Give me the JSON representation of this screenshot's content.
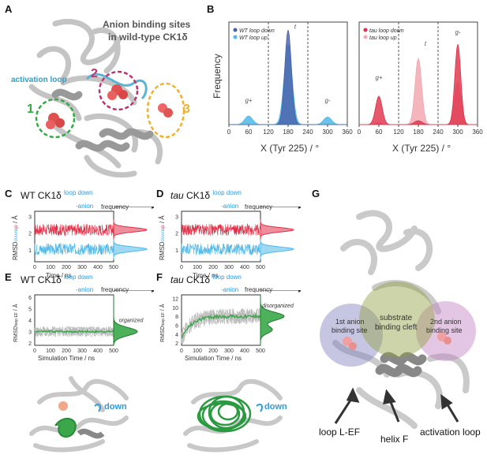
{
  "panelA": {
    "label": "A",
    "title_line1": "Anion binding sites",
    "title_line2": "in wild-type CK1δ",
    "activation_loop": "activation loop",
    "site1": "1",
    "site2": "2",
    "site3": "3"
  },
  "panelB": {
    "label": "B",
    "ylabel": "Frequency",
    "xlabel": "X (Tyr 225) / °",
    "xticks": [
      "0",
      "60",
      "120",
      "180",
      "240",
      "300",
      "360"
    ],
    "left_legend": [
      "WT loop down",
      "WT loop up"
    ],
    "right_legend": [
      "tau loop down",
      "tau loop up"
    ],
    "peak_labels": [
      "g+",
      "t",
      "g-"
    ]
  },
  "panelC": {
    "label": "C",
    "title_pre": "WT CK1δ",
    "title_sup1": "loop down",
    "title_sup2": "-anion",
    "ylabel_a": "RMSD",
    "ylabel_up": "up",
    "ylabel_down": "down",
    "ylabel_unit": "/ Å",
    "xlabel": "Time / ns",
    "frequency": "frequency",
    "xticks": [
      "0",
      "100",
      "200",
      "300",
      "400",
      "500"
    ],
    "yticks": [
      "1",
      "2",
      "3"
    ]
  },
  "panelD": {
    "label": "D",
    "title_pre": "tau",
    "title_mid": " CK1δ",
    "title_sup1": "loop down",
    "title_sup2": "-anion",
    "ylabel_a": "RMSD",
    "ylabel_up": "up",
    "ylabel_down": "down",
    "ylabel_unit": "/ Å",
    "xlabel": "Time / ns",
    "frequency": "frequency",
    "xticks": [
      "0",
      "100",
      "200",
      "300",
      "400",
      "500"
    ],
    "yticks": [
      "1",
      "2",
      "3"
    ]
  },
  "panelE": {
    "label": "E",
    "title_pre": "WT CK1δ",
    "title_sup1": "loop down",
    "title_sup2": "-anion",
    "ylabel": "RMSD",
    "ylabel_sup": "loop EF",
    "ylabel_unit": "/ Å",
    "xlabel": "Simulation Time / ns",
    "frequency": "frequency",
    "state": "organized",
    "xticks": [
      "0",
      "100",
      "200",
      "300",
      "400",
      "500"
    ],
    "yticks": [
      "2",
      "3",
      "4",
      "5",
      "6"
    ],
    "down": "down"
  },
  "panelF": {
    "label": "F",
    "title_pre": "tau",
    "title_mid": " CK1δ",
    "title_sup1": "loop down",
    "title_sup2": "-anion",
    "ylabel": "RMSD",
    "ylabel_sup": "loop EF",
    "ylabel_unit": "/ Å",
    "xlabel": "Simulation Time / ns",
    "frequency": "frequency",
    "state": "disorganized",
    "xticks": [
      "0",
      "100",
      "200",
      "300",
      "400",
      "500"
    ],
    "yticks": [
      "2",
      "4",
      "6",
      "8",
      "10",
      "12"
    ],
    "down": "down"
  },
  "panelG": {
    "label": "G",
    "site1_line1": "1st anion",
    "site1_line2": "binding site",
    "cleft_line1": "substrate",
    "cleft_line2": "binding cleft",
    "site2_line1": "2nd anion",
    "site2_line2": "binding site",
    "loop": "loop L-EF",
    "helix": "helix F",
    "activation_loop": "activation loop"
  },
  "colors": {
    "wt_down": "#4a5fa8",
    "wt_up": "#4fb8e8",
    "tau_down": "#e03048",
    "tau_up": "#f2a8b0",
    "green": "#3aa84a",
    "protein": "#bbbbbb"
  }
}
